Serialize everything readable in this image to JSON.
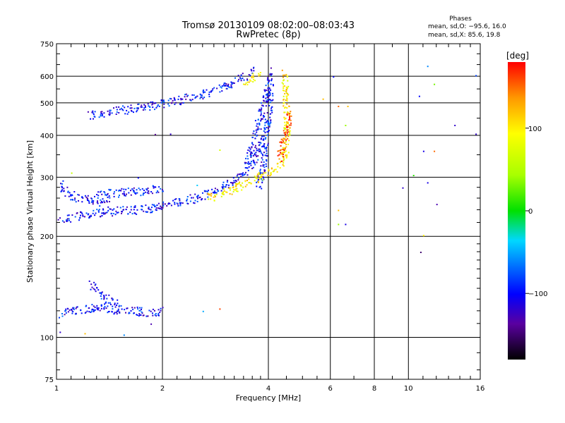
{
  "chart_data": {
    "type": "scatter",
    "title": "Tromsø 20130109 08:02:00–08:03:43",
    "subtitle": "RwPretec (8p)",
    "xlabel": "Frequency [MHz]",
    "ylabel": "Stationary phase Virtual Height [km]",
    "x_scale": "log",
    "y_scale": "log",
    "xlim": [
      1,
      16
    ],
    "ylim": [
      75,
      750
    ],
    "x_ticks": [
      1,
      2,
      4,
      6,
      8,
      10,
      16
    ],
    "x_tick_labels": [
      "1",
      "2",
      "4",
      "6",
      "8",
      "10",
      "16"
    ],
    "y_ticks": [
      75,
      100,
      200,
      300,
      400,
      500,
      600,
      750
    ],
    "y_tick_labels": [
      "75",
      "100",
      "200",
      "300",
      "400",
      "500",
      "600",
      "750"
    ],
    "grid": true,
    "stats": {
      "heading": "Phases",
      "line1": "mean, sd,O: −95.6, 16.0",
      "line2": "mean, sd,X: 85.6, 19.8"
    },
    "colorbar": {
      "label": "[deg]",
      "range": [
        -180,
        180
      ],
      "ticks": [
        100,
        0,
        -100
      ],
      "tick_labels": [
        "100",
        "0",
        "−100"
      ]
    },
    "series": [
      {
        "phase_deg": -100,
        "traces": [
          {
            "x": [
              1.02,
              1.05,
              1.1,
              1.2,
              1.35,
              1.5,
              1.7,
              1.9,
              2.1,
              2.3,
              2.5,
              2.7,
              2.9,
              3.1,
              3.3,
              3.5,
              3.7,
              3.85
            ],
            "y": [
              222,
              224,
              228,
              233,
              237,
              239,
              241,
              244,
              249,
              255,
              262,
              270,
              279,
              290,
              303,
              320,
              350,
              390
            ]
          },
          {
            "x": [
              1.02,
              1.05,
              1.1,
              1.15,
              1.25,
              1.4
            ],
            "y": [
              290,
              275,
              265,
              262,
              258,
              250
            ]
          },
          {
            "x": [
              1.3,
              1.45,
              1.6,
              1.8,
              2.0
            ],
            "y": [
              265,
              270,
              272,
              275,
              278
            ]
          },
          {
            "x": [
              1.25,
              1.4,
              1.6,
              1.8,
              2.0,
              2.2,
              2.5,
              2.8,
              3.1,
              3.4,
              3.6
            ],
            "y": [
              460,
              470,
              480,
              490,
              500,
              510,
              525,
              545,
              570,
              600,
              625
            ]
          },
          {
            "x": [
              3.45,
              3.55,
              3.65,
              3.75,
              3.85,
              3.95,
              4.05
            ],
            "y": [
              330,
              360,
              400,
              440,
              490,
              550,
              620
            ]
          },
          {
            "x": [
              3.75,
              3.8,
              3.85,
              3.9,
              3.95,
              4.0,
              4.05
            ],
            "y": [
              280,
              300,
              330,
              370,
              420,
              480,
              560
            ]
          },
          {
            "x": [
              1.02,
              1.06,
              1.12,
              1.2,
              1.3,
              1.4,
              1.55,
              1.7,
              1.85,
              2.0
            ],
            "y": [
              118,
              120,
              121,
              122,
              123,
              122,
              121,
              120,
              119,
              120
            ]
          },
          {
            "x": [
              1.25,
              1.3,
              1.35,
              1.4,
              1.5
            ],
            "y": [
              145,
              140,
              135,
              130,
              125
            ]
          }
        ]
      },
      {
        "phase_deg": 100,
        "traces": [
          {
            "x": [
              3.2,
              3.5,
              3.8,
              4.1,
              4.35,
              4.45,
              4.5,
              4.5,
              4.48,
              4.45,
              4.45
            ],
            "y": [
              280,
              292,
              302,
              315,
              330,
              360,
              400,
              450,
              500,
              560,
              620
            ]
          },
          {
            "x": [
              2.7,
              2.9,
              3.1,
              3.3
            ],
            "y": [
              262,
              268,
              276,
              285
            ]
          },
          {
            "x": [
              3.45,
              3.6,
              3.75
            ],
            "y": [
              570,
              590,
              610
            ]
          }
        ]
      },
      {
        "phase_deg": 160,
        "traces": [
          {
            "x": [
              4.3,
              4.4,
              4.55,
              4.6
            ],
            "y": [
              340,
              390,
              430,
              470
            ]
          }
        ]
      }
    ],
    "scattered_points": [
      {
        "x": 6.3,
        "y": 490,
        "phase_deg": 150
      },
      {
        "x": 6.7,
        "y": 490,
        "phase_deg": 120
      },
      {
        "x": 6.6,
        "y": 430,
        "phase_deg": 40
      },
      {
        "x": 6.3,
        "y": 240,
        "phase_deg": 120
      },
      {
        "x": 6.3,
        "y": 218,
        "phase_deg": 40
      },
      {
        "x": 6.6,
        "y": 218,
        "phase_deg": -110
      },
      {
        "x": 5.7,
        "y": 515,
        "phase_deg": 120
      },
      {
        "x": 6.1,
        "y": 600,
        "phase_deg": -100
      },
      {
        "x": 9.6,
        "y": 280,
        "phase_deg": -120
      },
      {
        "x": 10.3,
        "y": 305,
        "phase_deg": 10
      },
      {
        "x": 10.7,
        "y": 525,
        "phase_deg": -100
      },
      {
        "x": 11.0,
        "y": 360,
        "phase_deg": -110
      },
      {
        "x": 11.3,
        "y": 645,
        "phase_deg": -60
      },
      {
        "x": 11.3,
        "y": 290,
        "phase_deg": -110
      },
      {
        "x": 11.8,
        "y": 570,
        "phase_deg": 30
      },
      {
        "x": 11.8,
        "y": 360,
        "phase_deg": 150
      },
      {
        "x": 12.0,
        "y": 250,
        "phase_deg": -130
      },
      {
        "x": 10.8,
        "y": 180,
        "phase_deg": -150
      },
      {
        "x": 11.0,
        "y": 202,
        "phase_deg": 100
      },
      {
        "x": 13.5,
        "y": 430,
        "phase_deg": -120
      },
      {
        "x": 15.5,
        "y": 605,
        "phase_deg": -80
      },
      {
        "x": 15.5,
        "y": 405,
        "phase_deg": -120
      },
      {
        "x": 2.9,
        "y": 122,
        "phase_deg": 160
      },
      {
        "x": 2.6,
        "y": 120,
        "phase_deg": -50
      },
      {
        "x": 1.85,
        "y": 110,
        "phase_deg": -130
      },
      {
        "x": 1.55,
        "y": 102,
        "phase_deg": -60
      },
      {
        "x": 1.02,
        "y": 104,
        "phase_deg": -120
      },
      {
        "x": 1.2,
        "y": 103,
        "phase_deg": 120
      },
      {
        "x": 2.9,
        "y": 363,
        "phase_deg": 70
      },
      {
        "x": 2.5,
        "y": 285,
        "phase_deg": -40
      },
      {
        "x": 1.1,
        "y": 310,
        "phase_deg": 60
      },
      {
        "x": 1.7,
        "y": 300,
        "phase_deg": -100
      },
      {
        "x": 2.1,
        "y": 405,
        "phase_deg": -120
      },
      {
        "x": 1.9,
        "y": 404,
        "phase_deg": -140
      }
    ]
  }
}
